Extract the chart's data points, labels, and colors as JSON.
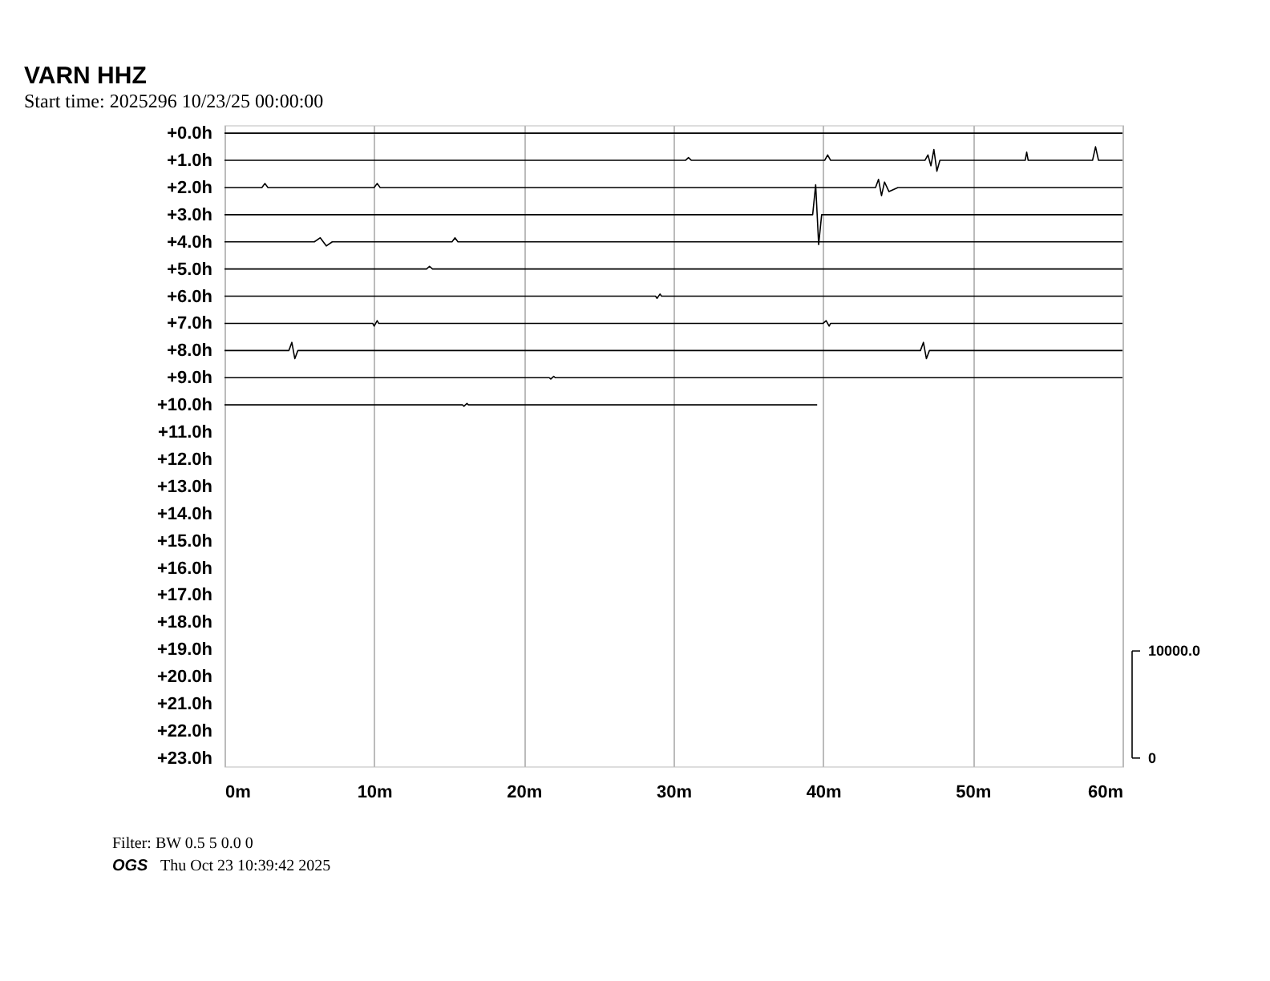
{
  "chart_data": {
    "type": "line",
    "title": "VARN HHZ",
    "subtitle": "Start time: 2025296 10/23/25 00:00:00",
    "annotations": [
      "Filter: BW 0.5 5 0.0 0",
      "OGS",
      "Thu Oct 23 10:39:42 2025"
    ],
    "xlim": [
      0,
      60
    ],
    "xticks": [
      {
        "value": 0,
        "label": "0m"
      },
      {
        "value": 10,
        "label": "10m"
      },
      {
        "value": 20,
        "label": "20m"
      },
      {
        "value": 30,
        "label": "30m"
      },
      {
        "value": 40,
        "label": "40m"
      },
      {
        "value": 50,
        "label": "50m"
      },
      {
        "value": 60,
        "label": "60m"
      }
    ],
    "ylim": [
      23.3,
      -0.3
    ],
    "yticks": [
      {
        "value": 0,
        "label": "+0.0h"
      },
      {
        "value": 1,
        "label": "+1.0h"
      },
      {
        "value": 2,
        "label": "+2.0h"
      },
      {
        "value": 3,
        "label": "+3.0h"
      },
      {
        "value": 4,
        "label": "+4.0h"
      },
      {
        "value": 5,
        "label": "+5.0h"
      },
      {
        "value": 6,
        "label": "+6.0h"
      },
      {
        "value": 7,
        "label": "+7.0h"
      },
      {
        "value": 8,
        "label": "+8.0h"
      },
      {
        "value": 9,
        "label": "+9.0h"
      },
      {
        "value": 10,
        "label": "+10.0h"
      },
      {
        "value": 11,
        "label": "+11.0h"
      },
      {
        "value": 12,
        "label": "+12.0h"
      },
      {
        "value": 13,
        "label": "+13.0h"
      },
      {
        "value": 14,
        "label": "+14.0h"
      },
      {
        "value": 15,
        "label": "+15.0h"
      },
      {
        "value": 16,
        "label": "+16.0h"
      },
      {
        "value": 17,
        "label": "+17.0h"
      },
      {
        "value": 18,
        "label": "+18.0h"
      },
      {
        "value": 19,
        "label": "+19.0h"
      },
      {
        "value": 20,
        "label": "+20.0h"
      },
      {
        "value": 21,
        "label": "+21.0h"
      },
      {
        "value": 22,
        "label": "+22.0h"
      },
      {
        "value": 23,
        "label": "+23.0h"
      }
    ],
    "y2lim": [
      -760,
      59100
    ],
    "y2ticks": [
      0,
      {
        "value": 10000,
        "label": "10000.0"
      }
    ],
    "grid": "x",
    "legend": false,
    "marker": "none",
    "line_style": "solid",
    "series": [
      {
        "color": "#000000",
        "x": [
          0,
          60
        ],
        "values": [
          0,
          0
        ]
      },
      {
        "color": "#000000",
        "x": [
          0,
          30.8,
          31,
          31.2,
          40.1,
          40.3,
          40.5,
          46.8,
          47.0,
          47.2,
          47.4,
          47.6,
          47.8,
          53.5,
          53.6,
          53.7,
          58.0,
          58.2,
          58.4,
          60
        ],
        "values": [
          1,
          1,
          0.9,
          1,
          1,
          0.8,
          1,
          1,
          0.8,
          1.2,
          0.6,
          1.4,
          1,
          1,
          0.7,
          1,
          1,
          0.5,
          1,
          1
        ]
      },
      {
        "color": "#000000",
        "x": [
          0,
          2.5,
          2.7,
          2.9,
          10,
          10.2,
          10.4,
          43.5,
          43.7,
          43.9,
          44.1,
          44.4,
          45,
          60
        ],
        "values": [
          2,
          2,
          1.85,
          2,
          2,
          1.85,
          2,
          2,
          1.7,
          2.3,
          1.8,
          2.15,
          2,
          2
        ]
      },
      {
        "color": "#000000",
        "x": [
          0,
          39.3,
          39.5,
          39.7,
          39.9,
          60
        ],
        "values": [
          3,
          3,
          1.9,
          4.1,
          3,
          3
        ]
      },
      {
        "color": "#000000",
        "x": [
          0,
          6.0,
          6.4,
          6.8,
          7.2,
          15.2,
          15.4,
          15.6,
          60
        ],
        "values": [
          4,
          4,
          3.85,
          4.15,
          4,
          4,
          3.85,
          4,
          4
        ]
      },
      {
        "color": "#000000",
        "x": [
          0,
          13.5,
          13.7,
          13.9,
          60
        ],
        "values": [
          5,
          5,
          4.9,
          5,
          5
        ]
      },
      {
        "color": "#000000",
        "x": [
          0,
          28.8,
          28.9,
          29.1,
          29.2,
          60
        ],
        "values": [
          6,
          6,
          6.08,
          5.92,
          6,
          6
        ]
      },
      {
        "color": "#000000",
        "x": [
          0,
          9.9,
          10,
          10.2,
          10.3,
          40,
          40.2,
          40.4,
          40.5,
          60
        ],
        "values": [
          7,
          7,
          7.1,
          6.9,
          7,
          7,
          6.9,
          7.1,
          7,
          7
        ]
      },
      {
        "color": "#000000",
        "x": [
          0,
          4.3,
          4.5,
          4.7,
          4.9,
          46.5,
          46.7,
          46.9,
          47.1,
          60
        ],
        "values": [
          8,
          8,
          7.7,
          8.3,
          8,
          8,
          7.7,
          8.3,
          8,
          8
        ]
      },
      {
        "color": "#000000",
        "x": [
          0,
          21.7,
          21.8,
          22,
          22.1,
          60
        ],
        "values": [
          9,
          9,
          9.05,
          8.95,
          9,
          9
        ]
      },
      {
        "color": "#000000",
        "x": [
          0,
          15.9,
          16,
          16.2,
          16.3,
          39.6
        ],
        "values": [
          10,
          10,
          10.05,
          9.95,
          10,
          10
        ]
      }
    ]
  }
}
